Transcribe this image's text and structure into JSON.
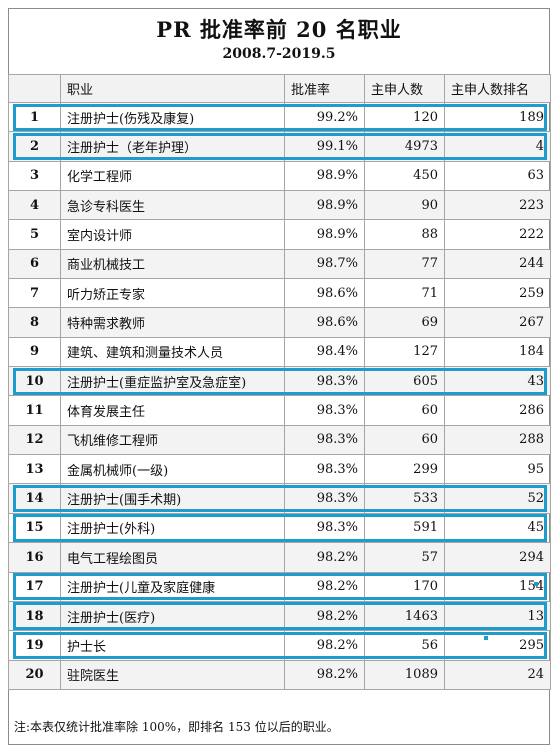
{
  "title": "PR 批准率前 20 名职业",
  "subtitle": "2008.7-2019.5",
  "columns": [
    "",
    "职业",
    "批准率",
    "主申人数",
    "主申人数排名"
  ],
  "rows": [
    {
      "rank": "1",
      "job": "注册护士(伤残及康复)",
      "rate": "99.2%",
      "applicants": "120",
      "applicant_rank": "189",
      "highlighted": true
    },
    {
      "rank": "2",
      "job": "注册护士（老年护理）",
      "rate": "99.1%",
      "applicants": "4973",
      "applicant_rank": "4",
      "highlighted": true
    },
    {
      "rank": "3",
      "job": "化学工程师",
      "rate": "98.9%",
      "applicants": "450",
      "applicant_rank": "63",
      "highlighted": false
    },
    {
      "rank": "4",
      "job": "急诊专科医生",
      "rate": "98.9%",
      "applicants": "90",
      "applicant_rank": "223",
      "highlighted": false
    },
    {
      "rank": "5",
      "job": "室内设计师",
      "rate": "98.9%",
      "applicants": "88",
      "applicant_rank": "222",
      "highlighted": false
    },
    {
      "rank": "6",
      "job": "商业机械技工",
      "rate": "98.7%",
      "applicants": "77",
      "applicant_rank": "244",
      "highlighted": false
    },
    {
      "rank": "7",
      "job": "听力矫正专家",
      "rate": "98.6%",
      "applicants": "71",
      "applicant_rank": "259",
      "highlighted": false
    },
    {
      "rank": "8",
      "job": "特种需求教师",
      "rate": "98.6%",
      "applicants": "69",
      "applicant_rank": "267",
      "highlighted": false
    },
    {
      "rank": "9",
      "job": "建筑、建筑和测量技术人员",
      "rate": "98.4%",
      "applicants": "127",
      "applicant_rank": "184",
      "highlighted": false
    },
    {
      "rank": "10",
      "job": "注册护士(重症监护室及急症室)",
      "rate": "98.3%",
      "applicants": "605",
      "applicant_rank": "43",
      "highlighted": true
    },
    {
      "rank": "11",
      "job": "体育发展主任",
      "rate": "98.3%",
      "applicants": "60",
      "applicant_rank": "286",
      "highlighted": false
    },
    {
      "rank": "12",
      "job": "飞机维修工程师",
      "rate": "98.3%",
      "applicants": "60",
      "applicant_rank": "288",
      "highlighted": false
    },
    {
      "rank": "13",
      "job": "金属机械师(一级)",
      "rate": "98.3%",
      "applicants": "299",
      "applicant_rank": "95",
      "highlighted": false
    },
    {
      "rank": "14",
      "job": "注册护士(围手术期)",
      "rate": "98.3%",
      "applicants": "533",
      "applicant_rank": "52",
      "highlighted": true
    },
    {
      "rank": "15",
      "job": "注册护士(外科)",
      "rate": "98.3%",
      "applicants": "591",
      "applicant_rank": "45",
      "highlighted": true
    },
    {
      "rank": "16",
      "job": "电气工程绘图员",
      "rate": "98.2%",
      "applicants": "57",
      "applicant_rank": "294",
      "highlighted": false
    },
    {
      "rank": "17",
      "job": "注册护士(儿童及家庭健康",
      "rate": "98.2%",
      "applicants": "170",
      "applicant_rank": "154",
      "highlighted": true
    },
    {
      "rank": "18",
      "job": "注册护士(医疗)",
      "rate": "98.2%",
      "applicants": "1463",
      "applicant_rank": "13",
      "highlighted": true
    },
    {
      "rank": "19",
      "job": "护士长",
      "rate": "98.2%",
      "applicants": "56",
      "applicant_rank": "295",
      "highlighted": true
    },
    {
      "rank": "20",
      "job": "驻院医生",
      "rate": "98.2%",
      "applicants": "1089",
      "applicant_rank": "24",
      "highlighted": false
    }
  ],
  "note": "注:本表仅统计批准率除 100%，即排名 153 位以后的职业。",
  "colors": {
    "highlight_border": "#1e9ccf",
    "even_row": "#f3f3f3",
    "grid": "#a6a6a6"
  }
}
